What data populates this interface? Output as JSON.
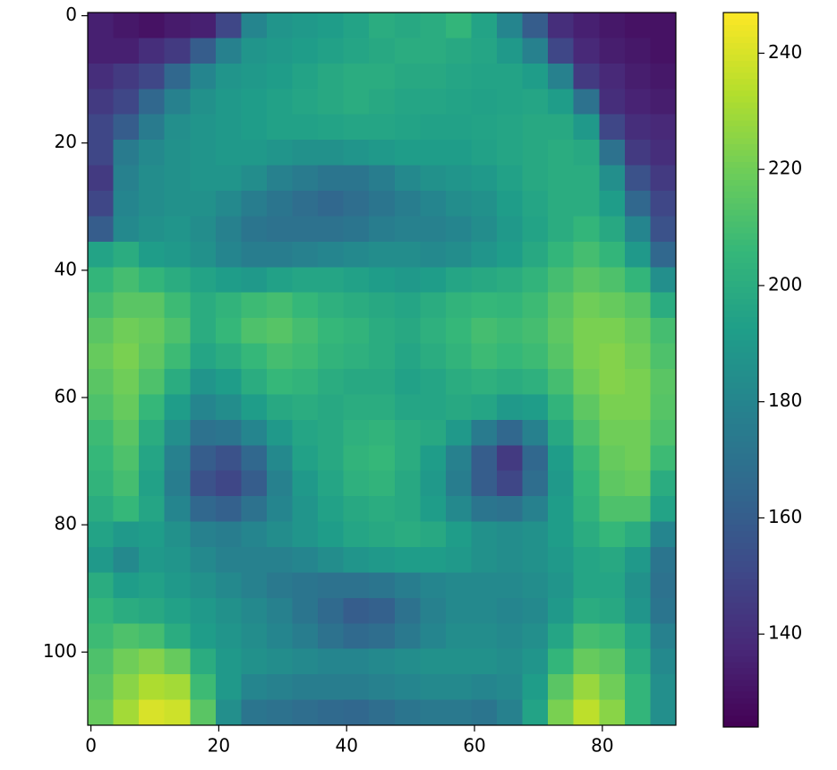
{
  "chart_data": {
    "type": "heatmap",
    "colormap": "viridis",
    "xlim": [
      -0.5,
      91.5
    ],
    "ylim": [
      111.5,
      -0.5
    ],
    "xticks": [
      0,
      20,
      40,
      60,
      80
    ],
    "yticks": [
      0,
      20,
      40,
      60,
      80,
      100
    ],
    "clim": [
      124,
      247
    ],
    "cticks": [
      140,
      160,
      180,
      200,
      220,
      240
    ],
    "z": [
      [
        135,
        132,
        130,
        133,
        135,
        150,
        180,
        188,
        190,
        192,
        195,
        200,
        198,
        200,
        205,
        195,
        180,
        160,
        140,
        135,
        132,
        130,
        130
      ],
      [
        135,
        135,
        140,
        145,
        160,
        178,
        188,
        190,
        192,
        194,
        196,
        198,
        200,
        200,
        198,
        196,
        190,
        178,
        150,
        138,
        134,
        132,
        130
      ],
      [
        140,
        145,
        150,
        165,
        180,
        188,
        190,
        192,
        195,
        198,
        200,
        200,
        198,
        198,
        196,
        195,
        195,
        192,
        178,
        145,
        138,
        134,
        132
      ],
      [
        145,
        150,
        165,
        178,
        186,
        190,
        192,
        194,
        196,
        198,
        200,
        198,
        196,
        196,
        195,
        194,
        195,
        196,
        192,
        170,
        140,
        136,
        134
      ],
      [
        150,
        160,
        175,
        185,
        188,
        190,
        192,
        194,
        194,
        195,
        196,
        196,
        195,
        194,
        194,
        195,
        196,
        198,
        198,
        190,
        150,
        140,
        138
      ],
      [
        150,
        175,
        182,
        186,
        188,
        190,
        190,
        188,
        186,
        186,
        188,
        190,
        192,
        192,
        192,
        194,
        196,
        198,
        200,
        198,
        170,
        145,
        140
      ],
      [
        145,
        178,
        184,
        186,
        188,
        188,
        184,
        178,
        175,
        172,
        172,
        176,
        182,
        186,
        188,
        190,
        194,
        198,
        200,
        200,
        185,
        155,
        145
      ],
      [
        150,
        180,
        184,
        186,
        186,
        182,
        176,
        172,
        168,
        165,
        168,
        172,
        176,
        180,
        184,
        186,
        192,
        196,
        200,
        200,
        192,
        165,
        150
      ],
      [
        160,
        182,
        186,
        188,
        184,
        178,
        172,
        170,
        170,
        170,
        172,
        176,
        178,
        178,
        180,
        184,
        190,
        195,
        200,
        205,
        198,
        180,
        155
      ],
      [
        195,
        200,
        192,
        190,
        186,
        180,
        176,
        176,
        178,
        180,
        182,
        184,
        184,
        182,
        184,
        188,
        192,
        198,
        205,
        210,
        205,
        190,
        165
      ],
      [
        205,
        210,
        205,
        200,
        195,
        192,
        190,
        194,
        196,
        196,
        194,
        192,
        190,
        192,
        196,
        198,
        200,
        204,
        210,
        215,
        212,
        205,
        185
      ],
      [
        210,
        215,
        215,
        208,
        200,
        204,
        208,
        210,
        206,
        202,
        200,
        198,
        196,
        200,
        204,
        206,
        205,
        208,
        214,
        220,
        218,
        214,
        200
      ],
      [
        215,
        220,
        218,
        212,
        200,
        206,
        212,
        214,
        210,
        206,
        204,
        200,
        198,
        202,
        206,
        210,
        208,
        210,
        216,
        222,
        222,
        218,
        210
      ],
      [
        218,
        222,
        216,
        208,
        196,
        200,
        206,
        210,
        208,
        204,
        202,
        200,
        196,
        200,
        204,
        208,
        206,
        208,
        214,
        222,
        224,
        220,
        212
      ],
      [
        215,
        220,
        212,
        200,
        188,
        192,
        200,
        206,
        204,
        200,
        198,
        198,
        194,
        196,
        200,
        202,
        200,
        202,
        210,
        220,
        224,
        222,
        215
      ],
      [
        212,
        218,
        206,
        192,
        180,
        184,
        192,
        198,
        200,
        198,
        200,
        200,
        196,
        196,
        198,
        196,
        190,
        192,
        204,
        216,
        222,
        222,
        214
      ],
      [
        208,
        215,
        200,
        185,
        170,
        172,
        180,
        190,
        196,
        198,
        202,
        204,
        200,
        198,
        190,
        175,
        165,
        178,
        198,
        212,
        220,
        220,
        212
      ],
      [
        206,
        212,
        196,
        178,
        160,
        155,
        165,
        182,
        194,
        198,
        204,
        206,
        200,
        192,
        178,
        160,
        145,
        165,
        192,
        208,
        218,
        220,
        208
      ],
      [
        204,
        210,
        194,
        176,
        155,
        150,
        160,
        178,
        190,
        196,
        202,
        204,
        198,
        190,
        176,
        160,
        150,
        168,
        190,
        206,
        216,
        218,
        200
      ],
      [
        200,
        206,
        196,
        180,
        165,
        162,
        170,
        180,
        188,
        194,
        198,
        200,
        198,
        192,
        182,
        172,
        170,
        178,
        192,
        204,
        212,
        212,
        195
      ],
      [
        195,
        190,
        192,
        186,
        178,
        176,
        180,
        184,
        188,
        192,
        196,
        198,
        200,
        198,
        192,
        186,
        184,
        186,
        192,
        200,
        206,
        200,
        180
      ],
      [
        190,
        182,
        190,
        188,
        182,
        178,
        178,
        178,
        180,
        184,
        188,
        190,
        192,
        192,
        190,
        186,
        184,
        186,
        190,
        196,
        198,
        190,
        172
      ],
      [
        200,
        192,
        194,
        190,
        186,
        182,
        178,
        174,
        172,
        170,
        170,
        172,
        176,
        180,
        182,
        182,
        182,
        184,
        188,
        196,
        196,
        186,
        170
      ],
      [
        205,
        200,
        198,
        194,
        190,
        186,
        182,
        178,
        172,
        166,
        160,
        162,
        170,
        178,
        182,
        182,
        180,
        182,
        190,
        200,
        198,
        188,
        172
      ],
      [
        208,
        212,
        210,
        200,
        192,
        188,
        184,
        180,
        176,
        170,
        166,
        168,
        174,
        180,
        184,
        184,
        182,
        185,
        196,
        210,
        208,
        196,
        178
      ],
      [
        212,
        220,
        224,
        218,
        200,
        190,
        186,
        184,
        182,
        180,
        180,
        182,
        184,
        186,
        186,
        186,
        184,
        188,
        205,
        218,
        215,
        200,
        182
      ],
      [
        215,
        225,
        232,
        230,
        208,
        190,
        180,
        178,
        176,
        176,
        176,
        178,
        180,
        182,
        182,
        180,
        182,
        192,
        215,
        228,
        220,
        205,
        185
      ],
      [
        218,
        230,
        240,
        238,
        215,
        185,
        172,
        170,
        168,
        166,
        165,
        168,
        172,
        174,
        174,
        172,
        178,
        195,
        222,
        235,
        225,
        205,
        185
      ]
    ]
  }
}
